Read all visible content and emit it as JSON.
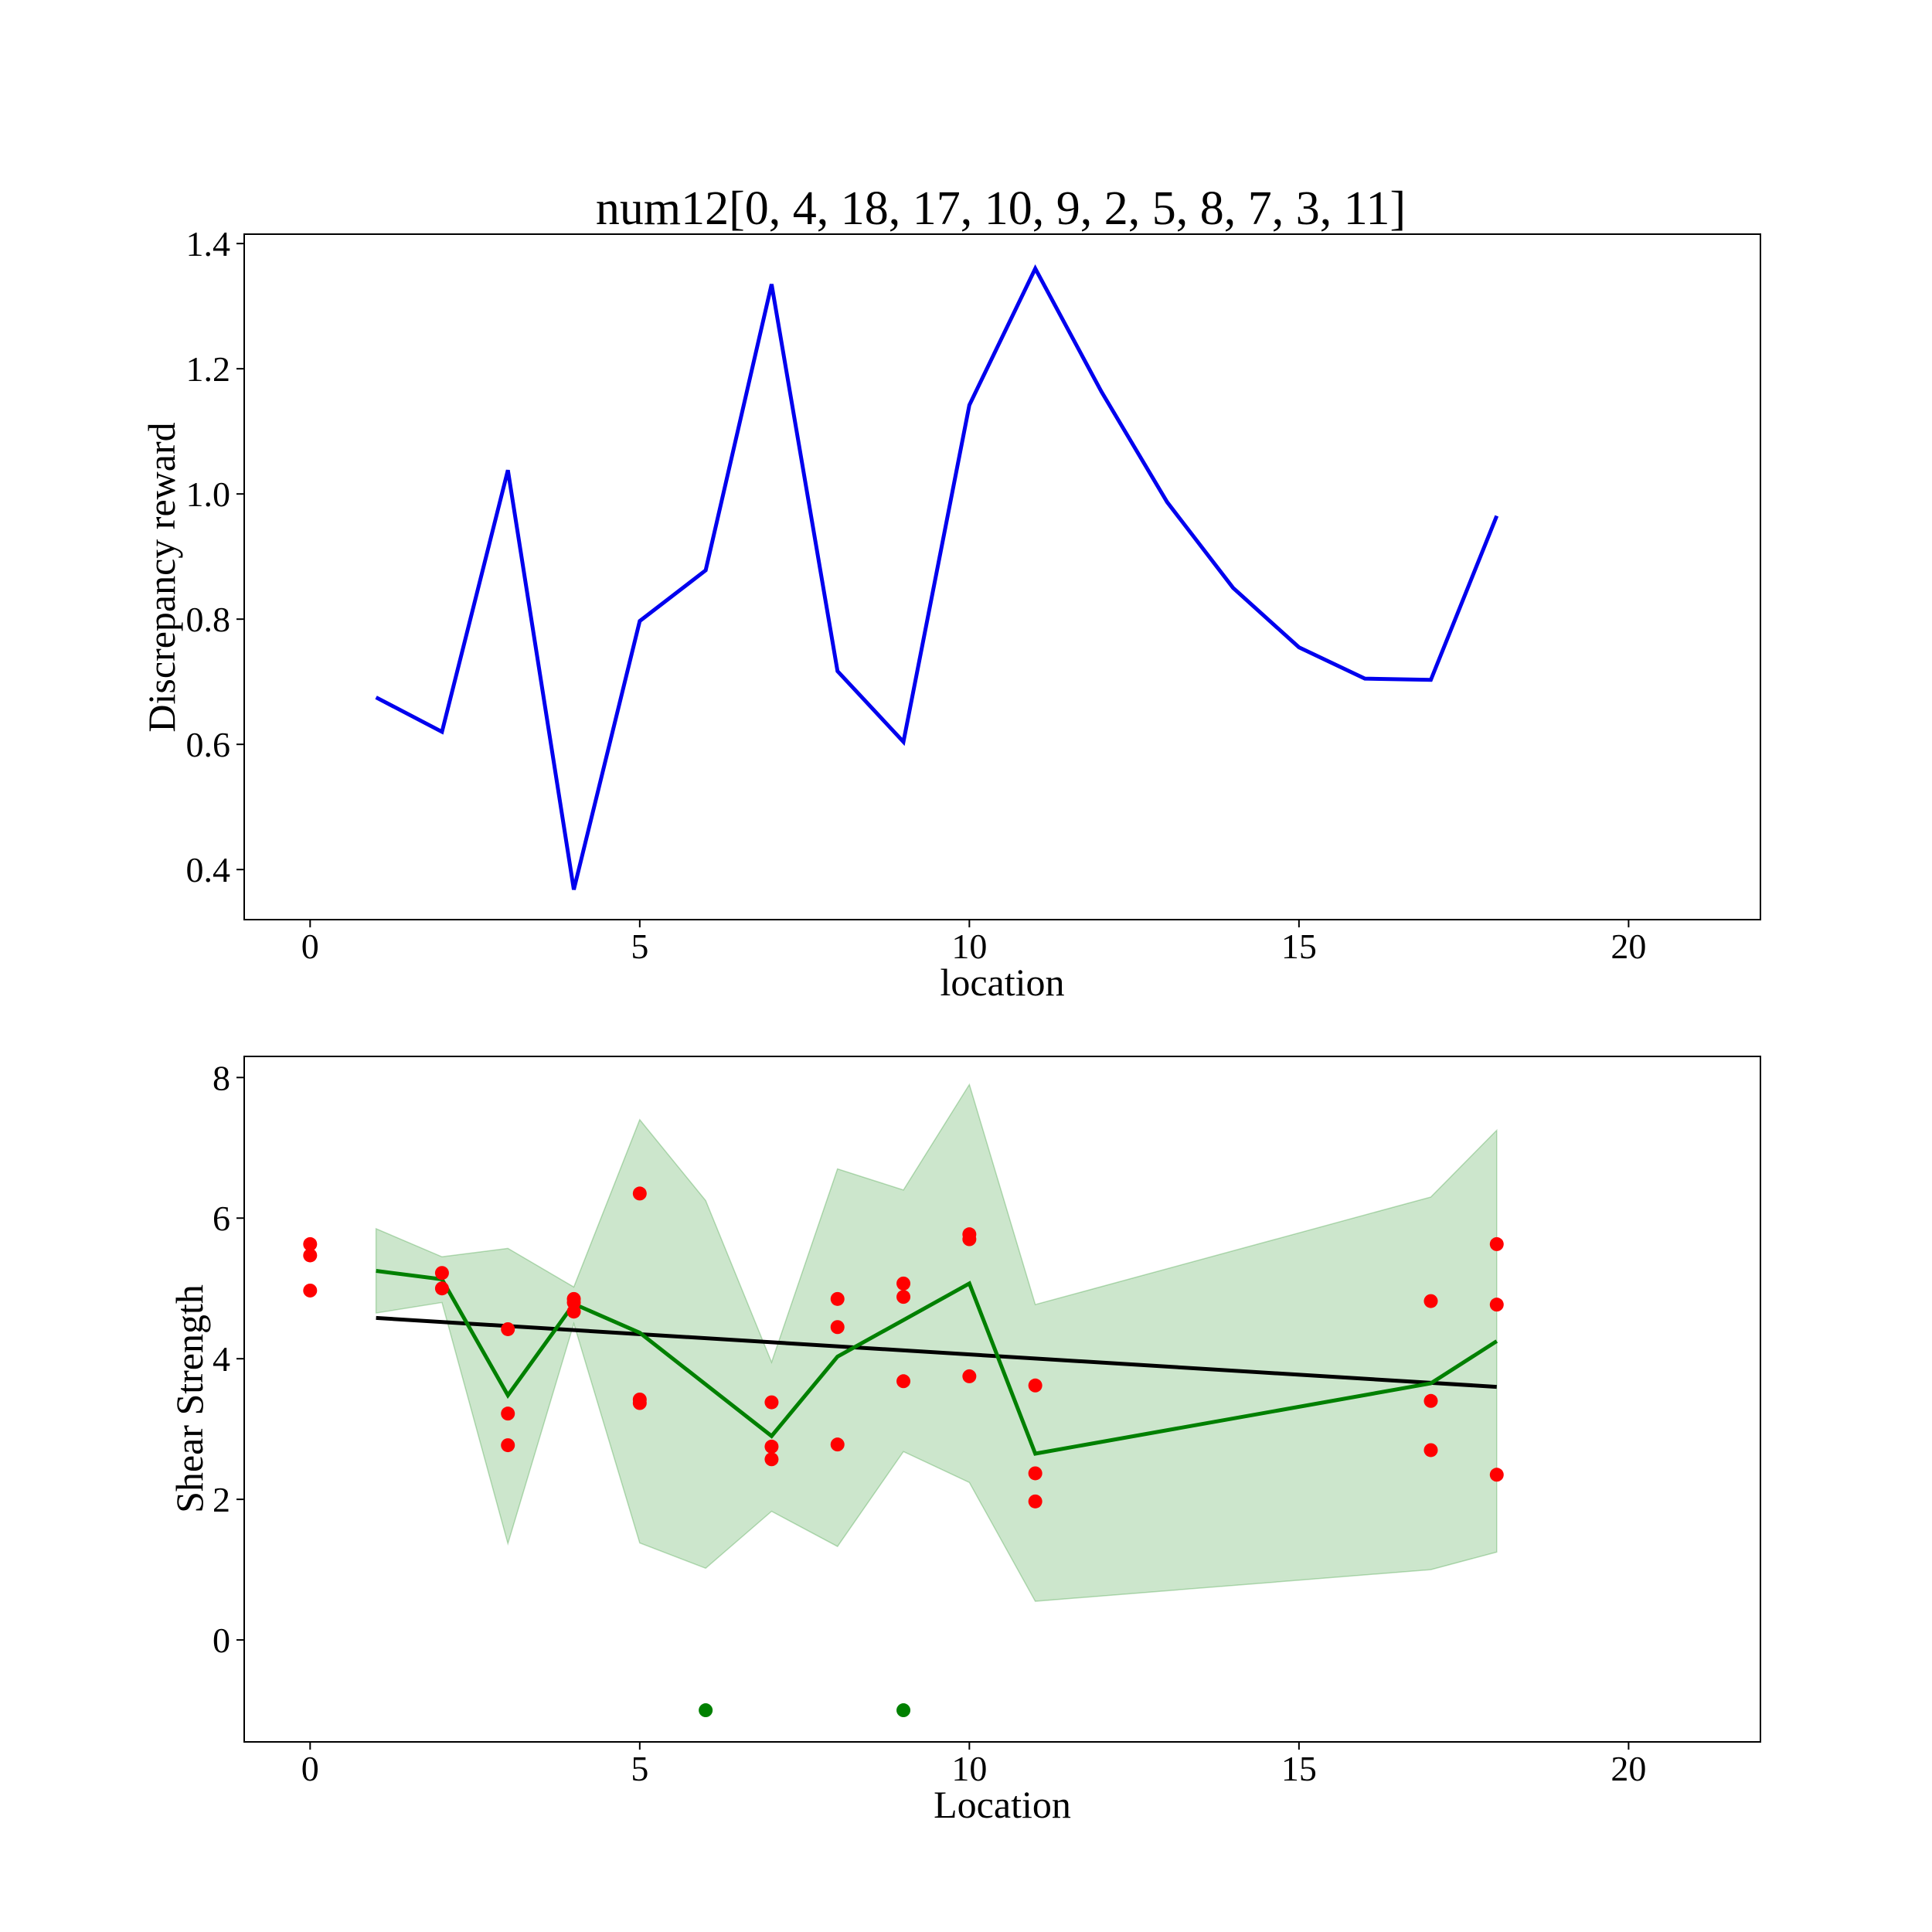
{
  "chart_data": [
    {
      "type": "line",
      "title": "num12[0, 4, 18, 17, 10, 9, 2, 5, 8, 7, 3, 11]",
      "xlabel": "location",
      "ylabel": "Discrepancy reward",
      "xlim": [
        -1,
        22
      ],
      "ylim": [
        0.32,
        1.415
      ],
      "xticks": [
        0,
        5,
        10,
        15,
        20
      ],
      "yticks": [
        0.4,
        0.6,
        0.8,
        1.0,
        1.2,
        1.4
      ],
      "yticks_text": [
        "0.4",
        "0.6",
        "0.8",
        "1.0",
        "1.2",
        "1.4"
      ],
      "grid": false,
      "series": [
        {
          "color": "#0000ee",
          "x": [
            1,
            2,
            3,
            4,
            5,
            6,
            7,
            8,
            9,
            10,
            11,
            12,
            13,
            14,
            15,
            16,
            17,
            18
          ],
          "y": [
            0.675,
            0.62,
            1.038,
            0.368,
            0.797,
            0.878,
            1.335,
            0.717,
            0.604,
            1.142,
            1.36,
            1.164,
            0.987,
            0.85,
            0.755,
            0.705,
            0.703,
            0.965
          ]
        }
      ]
    },
    {
      "type": "scatter",
      "title": "",
      "xlabel": "Location",
      "ylabel": "Shear Strength",
      "xlim": [
        -1,
        22
      ],
      "ylim": [
        -1.45,
        8.3
      ],
      "xticks": [
        0,
        5,
        10,
        15,
        20
      ],
      "yticks": [
        0,
        2,
        4,
        6,
        8
      ],
      "grid": false,
      "band": {
        "color": "#008000",
        "opacity": 0.2,
        "x": [
          1,
          2,
          3,
          4,
          5,
          6,
          7,
          8,
          9,
          10,
          11,
          17,
          18
        ],
        "upper": [
          5.85,
          5.45,
          5.57,
          5.02,
          7.4,
          6.25,
          3.95,
          6.7,
          6.4,
          7.9,
          4.77,
          6.3,
          7.25
        ],
        "lower": [
          4.65,
          4.8,
          1.37,
          4.5,
          1.38,
          1.02,
          1.83,
          1.33,
          2.68,
          2.24,
          0.55,
          1.0,
          1.25
        ]
      },
      "mean_line": {
        "color": "#008000",
        "x": [
          1,
          2,
          3,
          4,
          5,
          7,
          8,
          9,
          10,
          11,
          17,
          18
        ],
        "y": [
          5.25,
          5.13,
          3.48,
          4.78,
          4.37,
          2.9,
          4.03,
          4.55,
          5.07,
          2.65,
          3.65,
          4.25
        ]
      },
      "trend_line": {
        "color": "#000000",
        "x": [
          1,
          18
        ],
        "y": [
          4.58,
          3.6
        ]
      },
      "points": {
        "color": "#ff0000",
        "x": [
          0,
          0,
          0,
          2,
          2,
          3,
          3,
          3,
          4,
          4,
          4,
          5,
          5,
          5,
          7,
          7,
          7,
          8,
          8,
          8,
          9,
          9,
          9,
          10,
          10,
          10,
          11,
          11,
          11,
          17,
          17,
          17,
          18,
          18,
          18
        ],
        "y": [
          5.63,
          5.47,
          4.97,
          5.22,
          5.0,
          4.42,
          3.22,
          2.77,
          4.85,
          4.8,
          4.67,
          6.35,
          3.42,
          3.37,
          3.38,
          2.75,
          2.57,
          4.85,
          4.45,
          2.78,
          5.07,
          4.88,
          3.68,
          5.77,
          5.7,
          3.75,
          3.62,
          2.37,
          1.97,
          4.82,
          3.4,
          2.7,
          5.63,
          4.77,
          2.35
        ]
      },
      "special_points": {
        "color": "#008000",
        "x": [
          6,
          9
        ],
        "y": [
          -1,
          -1
        ]
      }
    }
  ]
}
